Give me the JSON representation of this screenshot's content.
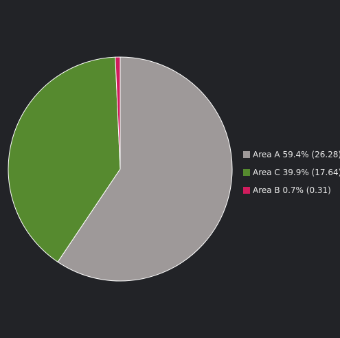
{
  "chart_data": {
    "type": "pie",
    "title": "",
    "slices": [
      {
        "name": "Area A",
        "value": 26.28,
        "percent": 59.4,
        "color": "#9e9999",
        "legend": "Area A 59.4% (26.28)"
      },
      {
        "name": "Area C",
        "value": 17.64,
        "percent": 39.9,
        "color": "#568a2f",
        "legend": "Area C 39.9% (17.64)"
      },
      {
        "name": "Area B",
        "value": 0.31,
        "percent": 0.7,
        "color": "#d01c5d",
        "legend": "Area B 0.7% (0.31)"
      }
    ],
    "legend_position": "right",
    "slice_border_color": "#ffffff",
    "background_color": "#222327"
  }
}
